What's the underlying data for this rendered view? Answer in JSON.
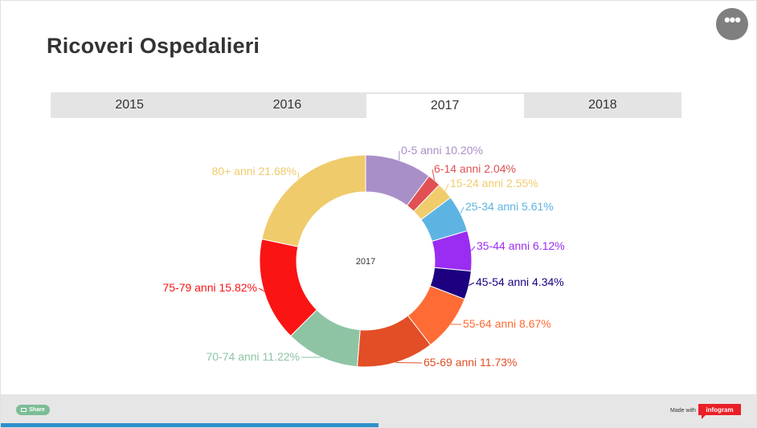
{
  "title": "Ricoveri Ospedalieri",
  "menu": {
    "icon": "more-icon",
    "glyph": "•••"
  },
  "tabs": [
    {
      "label": "2015",
      "active": false
    },
    {
      "label": "2016",
      "active": false
    },
    {
      "label": "2017",
      "active": true
    },
    {
      "label": "2018",
      "active": false
    }
  ],
  "chart_data": {
    "type": "pie",
    "variant": "donut",
    "center_label": "2017",
    "slices": [
      {
        "label": "0-5 anni 10.20%",
        "value": 10.2,
        "color": "#a98fc7"
      },
      {
        "label": "6-14 anni 2.04%",
        "value": 2.04,
        "color": "#e15053"
      },
      {
        "label": "15-24 anni 2.55%",
        "value": 2.55,
        "color": "#f0cc6c"
      },
      {
        "label": "25-34 anni 5.61%",
        "value": 5.61,
        "color": "#5db4e3"
      },
      {
        "label": "35-44 anni 6.12%",
        "value": 6.12,
        "color": "#9b2cf1"
      },
      {
        "label": "45-54 anni 4.34%",
        "value": 4.34,
        "color": "#1c0080"
      },
      {
        "label": "55-64 anni 8.67%",
        "value": 8.67,
        "color": "#ff6b35"
      },
      {
        "label": "65-69 anni 11.73%",
        "value": 11.73,
        "color": "#e24e25"
      },
      {
        "label": "70-74 anni 11.22%",
        "value": 11.22,
        "color": "#8ec4a4"
      },
      {
        "label": "75-79 anni 15.82%",
        "value": 15.82,
        "color": "#fa1414"
      },
      {
        "label": "80+ anni 21.68%",
        "value": 21.68,
        "color": "#efcb6b"
      }
    ]
  },
  "footer": {
    "share_label": "Share",
    "share_icon": "share-icon",
    "made_with": "Made with",
    "brand": "infogram",
    "progress": 0.5
  }
}
